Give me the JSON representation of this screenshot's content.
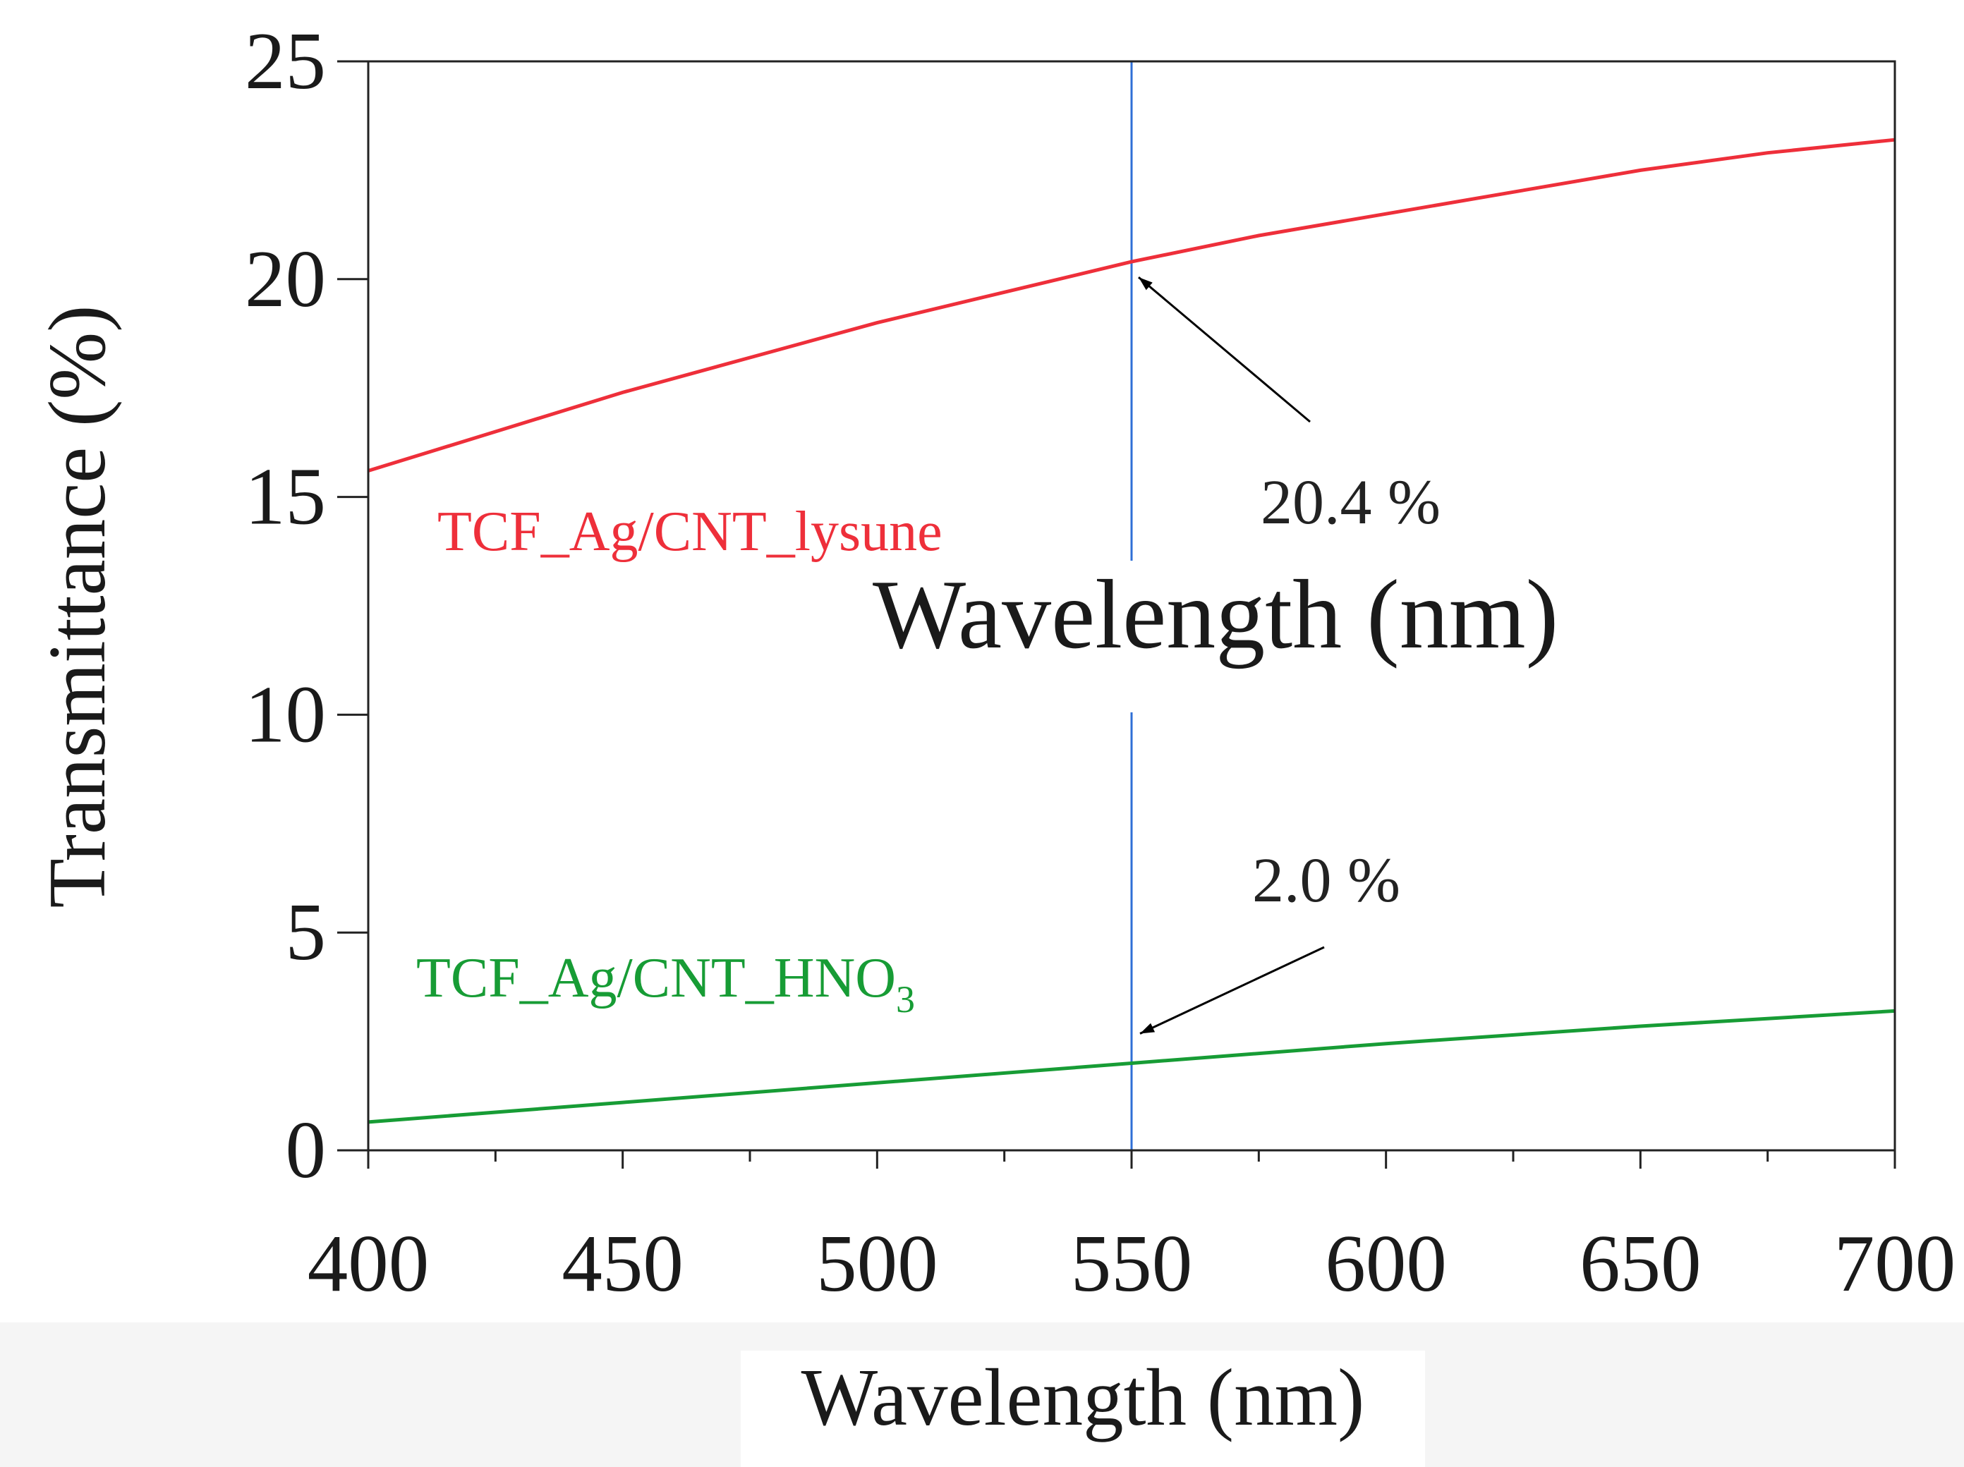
{
  "chart_data": {
    "type": "line",
    "xlabel": "Wavelength (nm)",
    "ylabel": "Transmittance (%)",
    "overlay_label": "Wavelength (nm)",
    "xlim": [
      400,
      700
    ],
    "ylim": [
      0,
      25
    ],
    "xticks": [
      400,
      450,
      500,
      550,
      600,
      650,
      700
    ],
    "yticks": [
      0,
      5,
      10,
      15,
      20,
      25
    ],
    "x_minor_step": 25,
    "grid": false,
    "reference_line": {
      "x": 550,
      "color": "#2f6fd6"
    },
    "series": [
      {
        "name": "TCF_Ag/CNT_lysune",
        "color": "#ee2f3a",
        "x": [
          400,
          425,
          450,
          475,
          500,
          525,
          550,
          575,
          600,
          625,
          650,
          675,
          700
        ],
        "y": [
          15.6,
          16.5,
          17.4,
          18.2,
          19.0,
          19.7,
          20.4,
          21.0,
          21.5,
          22.0,
          22.5,
          22.9,
          23.2
        ]
      },
      {
        "name": "TCF_Ag/CNT_HNO",
        "name_subscript": "3",
        "color": "#179c35",
        "x": [
          400,
          450,
          500,
          550,
          600,
          650,
          700
        ],
        "y": [
          0.65,
          1.1,
          1.55,
          2.0,
          2.45,
          2.85,
          3.2
        ]
      }
    ],
    "annotations": [
      {
        "text": "20.4 %",
        "x": 550,
        "y": 20.4
      },
      {
        "text": "2.0 %",
        "x": 550,
        "y": 2.0
      }
    ]
  }
}
